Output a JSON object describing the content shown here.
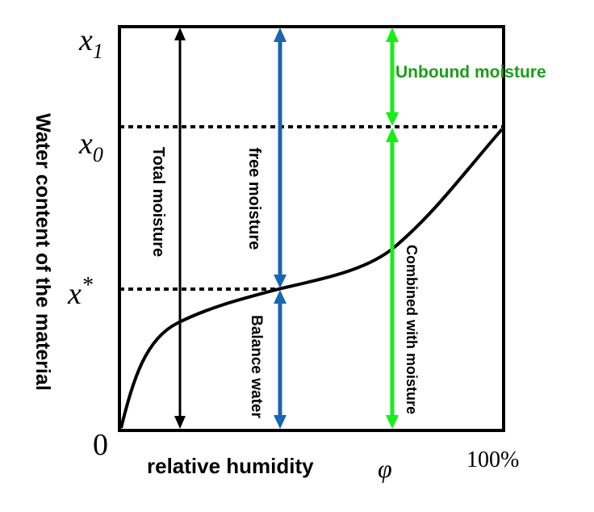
{
  "y_tick_labels": {
    "x1": "x",
    "x1_sub": "1",
    "x0": "x",
    "x0_sub": "0",
    "xstar": "x",
    "xstar_sup": "*",
    "zero": "0"
  },
  "x_tick_labels": {
    "end": "100%"
  },
  "axis_labels": {
    "x": "relative humidity",
    "x_symbol": "φ",
    "y": "Water content of the material"
  },
  "annotations": {
    "total": "Total moisture",
    "free": "free moisture",
    "balance": "Balance water",
    "combined": "Combined with moisture",
    "unbound": "Unbound moisture"
  },
  "colors": {
    "black": "#000000",
    "blue": "#1a66b0",
    "green": "#16ee16",
    "unbound_text": "#1a9e1a"
  },
  "curve": "sorption isotherm"
}
